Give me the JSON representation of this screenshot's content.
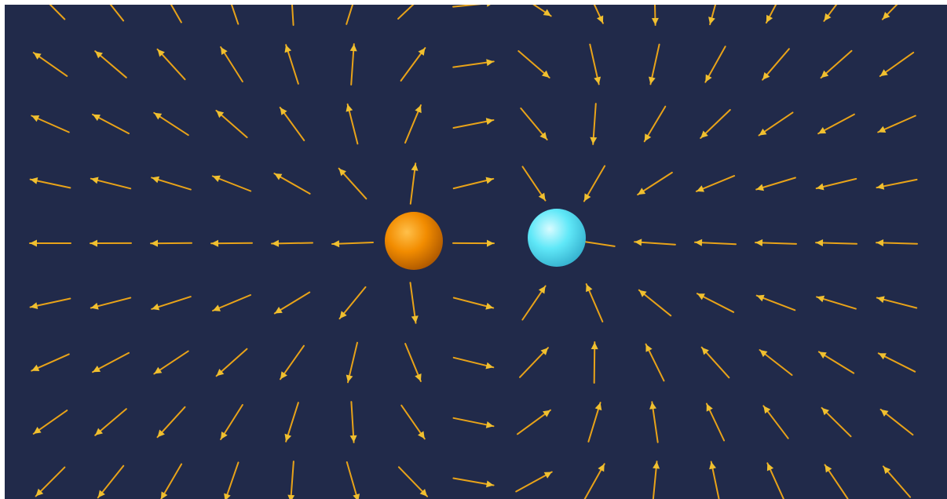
{
  "scene": {
    "background_color": "#212A4A",
    "frame_color": "#FFFFFF",
    "arrow_color": "#E8A319",
    "arrow_head_color": "#F0C030"
  },
  "charges": [
    {
      "name": "orange-charge",
      "sign": "positive",
      "color": "#F28C00",
      "highlight": "#FFC04A",
      "shadow": "#A24F00"
    },
    {
      "name": "cyan-charge",
      "sign": "negative",
      "color": "#60E8F8",
      "highlight": "#D8FBFF",
      "shadow": "#2EA8C8"
    }
  ]
}
